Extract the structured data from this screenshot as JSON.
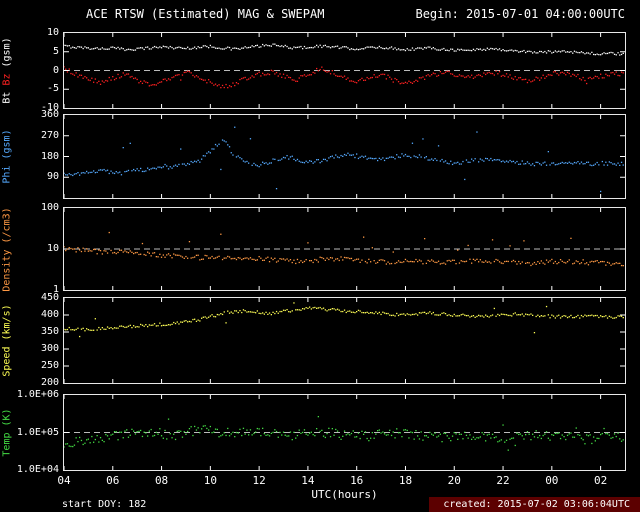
{
  "header": {
    "title": "ACE RTSW (Estimated) MAG & SWEPAM",
    "begin": "Begin: 2015-07-01 04:00:00UTC"
  },
  "footer": {
    "start_doy": "start DOY: 182",
    "created": "created: 2015-07-02 03:06:04UTC"
  },
  "colors": {
    "background": "#000000",
    "frame": "#e8e8e8",
    "dashed": "#bbbbbb",
    "bt": "#ffffff",
    "bz": "#ff2020",
    "phi": "#55aaff",
    "density": "#ff9944",
    "speed": "#ffff55",
    "temp": "#44dd44",
    "created_bg": "#5c0000"
  },
  "x_axis": {
    "label": "UTC(hours)",
    "range": [
      4,
      27
    ],
    "tick_hours": [
      4,
      6,
      8,
      10,
      12,
      14,
      16,
      18,
      20,
      22,
      24,
      26
    ],
    "tick_labels": [
      "04",
      "06",
      "08",
      "10",
      "12",
      "14",
      "16",
      "18",
      "20",
      "22",
      "00",
      "02"
    ],
    "hours": [
      4,
      4.5,
      5,
      5.5,
      6,
      6.5,
      7,
      7.5,
      8,
      8.5,
      9,
      9.5,
      10,
      10.5,
      11,
      11.5,
      12,
      12.5,
      13,
      13.5,
      14,
      14.5,
      15,
      15.5,
      16,
      16.5,
      17,
      17.5,
      18,
      18.5,
      19,
      19.5,
      20,
      20.5,
      21,
      21.5,
      22,
      22.5,
      23,
      23.5,
      24,
      24.5,
      25,
      25.5,
      26,
      26.5,
      27
    ]
  },
  "chart_data": [
    {
      "type": "scatter",
      "id": "bt-bz",
      "ylabel": "Bt Bz (gsm)",
      "ylabel_parts": [
        {
          "text": "Bt ",
          "color": "#ffffff"
        },
        {
          "text": "Bz ",
          "color": "#ff2020"
        },
        {
          "text": "(gsm)",
          "color": "#ffffff"
        }
      ],
      "yscale": "linear",
      "ylim": [
        -10,
        10
      ],
      "yticks": [
        {
          "v": 10,
          "label": "10"
        },
        {
          "v": 5,
          "label": "5"
        },
        {
          "v": 0,
          "label": "0"
        },
        {
          "v": -5,
          "label": "-5"
        },
        {
          "v": -10,
          "label": "-10"
        }
      ],
      "dashed_y": 0,
      "series": [
        {
          "name": "Bt",
          "color": "#ffffff",
          "jitter": 0.35,
          "outlier_rate": 0,
          "outlier_mag": 0,
          "outlier_sign": 0,
          "values": [
            6.5,
            6.2,
            6.0,
            5.8,
            6.0,
            5.6,
            5.8,
            6.0,
            6.3,
            6.1,
            5.9,
            6.2,
            6.4,
            6.0,
            5.7,
            6.1,
            6.5,
            6.8,
            6.4,
            6.0,
            6.2,
            6.5,
            6.3,
            6.0,
            5.8,
            6.0,
            6.2,
            5.9,
            5.6,
            5.8,
            6.0,
            5.7,
            5.5,
            5.3,
            5.6,
            5.8,
            5.5,
            5.2,
            5.0,
            4.8,
            5.0,
            5.2,
            4.9,
            4.6,
            4.4,
            4.5,
            4.3
          ]
        },
        {
          "name": "Bz",
          "color": "#ff2020",
          "jitter": 0.6,
          "outlier_rate": 0.01,
          "outlier_mag": 2.5,
          "outlier_sign": 0,
          "values": [
            0.5,
            -1.0,
            -2.0,
            -3.5,
            -2.0,
            -1.0,
            -2.5,
            -4.0,
            -3.0,
            -1.5,
            -0.5,
            -2.0,
            -3.0,
            -4.5,
            -3.5,
            -2.0,
            -1.0,
            -0.5,
            -1.5,
            -2.5,
            -1.0,
            0.5,
            -0.5,
            -2.0,
            -3.0,
            -2.0,
            -1.0,
            -2.5,
            -3.5,
            -2.5,
            -1.5,
            -0.5,
            -1.0,
            -2.0,
            -1.5,
            -0.5,
            -1.0,
            -2.0,
            -3.0,
            -2.0,
            -1.0,
            -0.5,
            -1.5,
            -2.5,
            -1.5,
            -1.0,
            -0.8
          ]
        }
      ]
    },
    {
      "type": "scatter",
      "id": "phi",
      "ylabel": "Phi (gsm)",
      "ylabel_parts": [
        {
          "text": "Phi ",
          "color": "#55aaff"
        },
        {
          "text": "(gsm)",
          "color": "#55aaff"
        }
      ],
      "yscale": "linear",
      "ylim": [
        0,
        360
      ],
      "yticks": [
        {
          "v": 360,
          "label": "360"
        },
        {
          "v": 270,
          "label": "270"
        },
        {
          "v": 180,
          "label": "180"
        },
        {
          "v": 90,
          "label": "90"
        }
      ],
      "dashed_y": null,
      "series": [
        {
          "name": "Phi",
          "color": "#55aaff",
          "jitter": 9,
          "outlier_rate": 0.025,
          "outlier_mag": 130,
          "outlier_sign": 0,
          "values": [
            100,
            105,
            110,
            118,
            112,
            108,
            118,
            128,
            138,
            132,
            148,
            158,
            200,
            255,
            185,
            150,
            142,
            160,
            178,
            170,
            152,
            162,
            175,
            190,
            182,
            172,
            166,
            176,
            186,
            180,
            170,
            160,
            152,
            156,
            165,
            170,
            160,
            155,
            150,
            146,
            150,
            155,
            150,
            148,
            152,
            150,
            148
          ]
        }
      ]
    },
    {
      "type": "scatter",
      "id": "density",
      "ylabel": "Density (/cm3)",
      "ylabel_parts": [
        {
          "text": "Density (/cm3)",
          "color": "#ff9944"
        }
      ],
      "yscale": "log",
      "ylim": [
        1,
        100
      ],
      "yticks": [
        {
          "v": 100,
          "label": "100"
        },
        {
          "v": 10,
          "label": "10"
        },
        {
          "v": 1,
          "label": "1"
        }
      ],
      "dashed_y": 10,
      "series": [
        {
          "name": "Density",
          "color": "#ff9944",
          "jitter": 0.06,
          "outlier_rate": 0.035,
          "outlier_mag": 0.7,
          "outlier_sign": 1,
          "values": [
            10,
            9.5,
            9.0,
            8.5,
            8.0,
            8.2,
            7.8,
            7.5,
            7.0,
            6.8,
            6.5,
            6.2,
            6.0,
            5.8,
            6.0,
            6.2,
            5.8,
            5.5,
            5.2,
            5.0,
            5.2,
            5.5,
            5.8,
            5.5,
            5.2,
            5.0,
            4.8,
            5.0,
            5.2,
            5.0,
            4.8,
            4.6,
            4.8,
            5.0,
            5.2,
            5.0,
            4.8,
            4.6,
            4.5,
            4.7,
            4.9,
            5.1,
            4.9,
            4.7,
            4.5,
            4.4,
            4.3
          ]
        }
      ]
    },
    {
      "type": "scatter",
      "id": "speed",
      "ylabel": "Speed (km/s)",
      "ylabel_parts": [
        {
          "text": "Speed (km/s)",
          "color": "#ffff55"
        }
      ],
      "yscale": "linear",
      "ylim": [
        200,
        450
      ],
      "yticks": [
        {
          "v": 450,
          "label": "450"
        },
        {
          "v": 400,
          "label": "400"
        },
        {
          "v": 350,
          "label": "350"
        },
        {
          "v": 300,
          "label": "300"
        },
        {
          "v": 250,
          "label": "250"
        },
        {
          "v": 200,
          "label": "200"
        }
      ],
      "dashed_y": null,
      "series": [
        {
          "name": "Speed",
          "color": "#ffff55",
          "jitter": 4.5,
          "outlier_rate": 0.02,
          "outlier_mag": 55,
          "outlier_sign": 0,
          "values": [
            360,
            358,
            356,
            360,
            362,
            365,
            368,
            370,
            372,
            375,
            380,
            385,
            395,
            405,
            410,
            412,
            408,
            405,
            410,
            415,
            420,
            418,
            415,
            412,
            410,
            408,
            405,
            402,
            400,
            402,
            405,
            403,
            400,
            398,
            396,
            398,
            400,
            402,
            400,
            398,
            396,
            394,
            395,
            396,
            395,
            394,
            395
          ]
        }
      ]
    },
    {
      "type": "scatter",
      "id": "temp",
      "ylabel": "Temp (K)",
      "ylabel_parts": [
        {
          "text": "Temp (K)",
          "color": "#44dd44"
        }
      ],
      "yscale": "log",
      "ylim": [
        10000,
        1000000
      ],
      "yticks": [
        {
          "v": 1000000,
          "label": "1.0E+06"
        },
        {
          "v": 100000,
          "label": "1.0E+05"
        },
        {
          "v": 10000,
          "label": "1.0E+04"
        }
      ],
      "dashed_y": 100000,
      "series": [
        {
          "name": "Temp",
          "color": "#44dd44",
          "jitter": 0.13,
          "outlier_rate": 0.03,
          "outlier_mag": 0.45,
          "outlier_sign": 0,
          "values": [
            50000,
            60000,
            55000,
            70000,
            80000,
            90000,
            100000,
            110000,
            95000,
            85000,
            100000,
            120000,
            110000,
            100000,
            90000,
            100000,
            110000,
            100000,
            90000,
            85000,
            90000,
            100000,
            95000,
            90000,
            85000,
            80000,
            90000,
            95000,
            90000,
            85000,
            80000,
            75000,
            80000,
            85000,
            80000,
            75000,
            70000,
            75000,
            80000,
            85000,
            80000,
            75000,
            70000,
            65000,
            70000,
            75000,
            70000
          ]
        }
      ]
    }
  ]
}
